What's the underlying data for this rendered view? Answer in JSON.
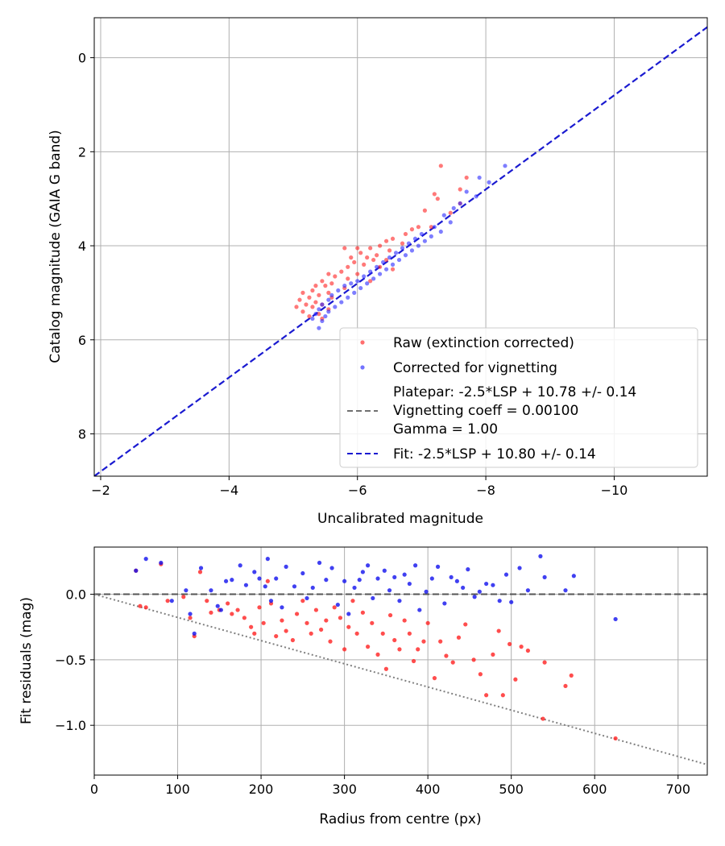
{
  "chart_data": [
    {
      "type": "scatter",
      "xlabel": "Uncalibrated magnitude",
      "ylabel": "Catalog magnitude (GAIA G band)",
      "xlim": [
        -1.9,
        -11.45
      ],
      "ylim": [
        8.9,
        -0.85
      ],
      "xticks": [
        -2,
        -4,
        -6,
        -8,
        -10
      ],
      "xtick_labels": [
        "−2",
        "−4",
        "−6",
        "−8",
        "−10"
      ],
      "yticks": [
        0,
        2,
        4,
        6,
        8
      ],
      "ytick_labels": [
        "0",
        "2",
        "4",
        "6",
        "8"
      ],
      "grid": true,
      "legend_position": "lower-right",
      "legend": {
        "raw": "Raw (extinction corrected)",
        "corrected": "Corrected for vignetting",
        "model_lines": [
          "Platepar: -2.5*LSP + 10.78 +/- 0.14",
          "Vignetting coeff = 0.00100",
          "Gamma = 1.00"
        ],
        "fit": "Fit: -2.5*LSP + 10.80 +/- 0.14"
      },
      "fit_line": {
        "slope": 1.0,
        "intercept": 10.8
      },
      "colors": {
        "raw": "#ff2020",
        "corrected": "#2828ff",
        "fit": "#1a1ad0",
        "model": "#707070",
        "grid": "#b0b0b0"
      },
      "series": [
        {
          "name": "Raw (extinction corrected)",
          "points": [
            [
              -7.3,
              2.3
            ],
            [
              -7.7,
              2.55
            ],
            [
              -7.6,
              2.8
            ],
            [
              -7.2,
              2.9
            ],
            [
              -7.25,
              3.0
            ],
            [
              -7.6,
              3.1
            ],
            [
              -7.05,
              3.25
            ],
            [
              -7.45,
              3.3
            ],
            [
              -6.95,
              3.6
            ],
            [
              -7.15,
              3.6
            ],
            [
              -6.85,
              3.65
            ],
            [
              -6.75,
              3.75
            ],
            [
              -6.55,
              3.85
            ],
            [
              -6.45,
              3.9
            ],
            [
              -6.7,
              3.95
            ],
            [
              -6.35,
              4.0
            ],
            [
              -6.2,
              4.05
            ],
            [
              -6.0,
              4.05
            ],
            [
              -5.8,
              4.05
            ],
            [
              -6.5,
              4.1
            ],
            [
              -6.05,
              4.15
            ],
            [
              -6.3,
              4.2
            ],
            [
              -5.9,
              4.25
            ],
            [
              -6.15,
              4.25
            ],
            [
              -6.45,
              4.3
            ],
            [
              -6.25,
              4.3
            ],
            [
              -5.95,
              4.35
            ],
            [
              -6.1,
              4.4
            ],
            [
              -5.85,
              4.45
            ],
            [
              -6.35,
              4.45
            ],
            [
              -6.55,
              4.5
            ],
            [
              -5.75,
              4.55
            ],
            [
              -5.55,
              4.6
            ],
            [
              -6.0,
              4.6
            ],
            [
              -5.65,
              4.65
            ],
            [
              -5.85,
              4.7
            ],
            [
              -5.45,
              4.75
            ],
            [
              -6.2,
              4.75
            ],
            [
              -5.6,
              4.8
            ],
            [
              -5.35,
              4.85
            ],
            [
              -5.5,
              4.85
            ],
            [
              -5.8,
              4.9
            ],
            [
              -5.3,
              4.95
            ],
            [
              -5.55,
              5.0
            ],
            [
              -5.15,
              5.0
            ],
            [
              -5.4,
              5.05
            ],
            [
              -5.25,
              5.1
            ],
            [
              -5.6,
              5.1
            ],
            [
              -5.1,
              5.15
            ],
            [
              -5.35,
              5.2
            ],
            [
              -5.45,
              5.25
            ],
            [
              -5.2,
              5.25
            ],
            [
              -5.05,
              5.3
            ],
            [
              -5.3,
              5.3
            ],
            [
              -5.55,
              5.35
            ],
            [
              -5.15,
              5.4
            ],
            [
              -5.4,
              5.45
            ],
            [
              -5.25,
              5.5
            ],
            [
              -5.45,
              5.55
            ]
          ]
        },
        {
          "name": "Corrected for vignetting",
          "points": [
            [
              -8.3,
              2.3
            ],
            [
              -7.9,
              2.55
            ],
            [
              -8.05,
              2.65
            ],
            [
              -7.7,
              2.85
            ],
            [
              -7.85,
              2.95
            ],
            [
              -7.6,
              3.1
            ],
            [
              -7.5,
              3.2
            ],
            [
              -7.35,
              3.35
            ],
            [
              -7.45,
              3.5
            ],
            [
              -7.2,
              3.6
            ],
            [
              -7.3,
              3.7
            ],
            [
              -7.0,
              3.75
            ],
            [
              -7.15,
              3.8
            ],
            [
              -6.9,
              3.85
            ],
            [
              -7.05,
              3.9
            ],
            [
              -6.8,
              3.95
            ],
            [
              -6.95,
              4.0
            ],
            [
              -6.7,
              4.05
            ],
            [
              -6.85,
              4.1
            ],
            [
              -6.6,
              4.15
            ],
            [
              -6.75,
              4.2
            ],
            [
              -6.5,
              4.25
            ],
            [
              -6.65,
              4.3
            ],
            [
              -6.4,
              4.35
            ],
            [
              -6.55,
              4.4
            ],
            [
              -6.3,
              4.45
            ],
            [
              -6.45,
              4.5
            ],
            [
              -6.2,
              4.55
            ],
            [
              -6.35,
              4.6
            ],
            [
              -6.1,
              4.65
            ],
            [
              -6.25,
              4.7
            ],
            [
              -6.0,
              4.75
            ],
            [
              -5.9,
              4.8
            ],
            [
              -6.15,
              4.8
            ],
            [
              -5.8,
              4.85
            ],
            [
              -6.05,
              4.9
            ],
            [
              -5.7,
              4.95
            ],
            [
              -5.95,
              5.0
            ],
            [
              -5.6,
              5.05
            ],
            [
              -5.85,
              5.1
            ],
            [
              -5.55,
              5.15
            ],
            [
              -5.75,
              5.2
            ],
            [
              -5.45,
              5.25
            ],
            [
              -5.65,
              5.3
            ],
            [
              -5.4,
              5.35
            ],
            [
              -5.55,
              5.4
            ],
            [
              -5.35,
              5.45
            ],
            [
              -5.5,
              5.5
            ],
            [
              -5.3,
              5.55
            ],
            [
              -5.45,
              5.6
            ],
            [
              -5.4,
              5.75
            ]
          ]
        }
      ]
    },
    {
      "type": "scatter",
      "xlabel": "Radius from centre (px)",
      "ylabel": "Fit residuals (mag)",
      "xlim": [
        0,
        735
      ],
      "ylim": [
        -1.38,
        0.36
      ],
      "xticks": [
        0,
        100,
        200,
        300,
        400,
        500,
        600,
        700
      ],
      "xtick_labels": [
        "0",
        "100",
        "200",
        "300",
        "400",
        "500",
        "600",
        "700"
      ],
      "yticks": [
        0.0,
        -0.5,
        -1.0
      ],
      "ytick_labels": [
        "0.0",
        "−0.5",
        "−1.0"
      ],
      "grid": true,
      "zero_line": 0.0,
      "trend_line": {
        "x": [
          0,
          735
        ],
        "y": [
          0.0,
          -1.3
        ]
      },
      "colors": {
        "raw": "#ff2020",
        "corrected": "#1010ee",
        "zero": "#555555",
        "trend": "#808080",
        "grid": "#b0b0b0"
      },
      "series": [
        {
          "name": "Raw",
          "points": [
            [
              50,
              0.18
            ],
            [
              55,
              -0.09
            ],
            [
              62,
              -0.1
            ],
            [
              80,
              0.23
            ],
            [
              88,
              -0.05
            ],
            [
              107,
              -0.02
            ],
            [
              115,
              -0.18
            ],
            [
              120,
              -0.32
            ],
            [
              127,
              0.17
            ],
            [
              135,
              -0.05
            ],
            [
              140,
              -0.14
            ],
            [
              150,
              -0.12
            ],
            [
              160,
              -0.07
            ],
            [
              165,
              -0.15
            ],
            [
              172,
              -0.12
            ],
            [
              180,
              -0.18
            ],
            [
              188,
              -0.25
            ],
            [
              192,
              -0.3
            ],
            [
              198,
              -0.1
            ],
            [
              203,
              -0.22
            ],
            [
              208,
              0.1
            ],
            [
              212,
              -0.07
            ],
            [
              218,
              -0.32
            ],
            [
              225,
              -0.2
            ],
            [
              230,
              -0.28
            ],
            [
              238,
              -0.35
            ],
            [
              243,
              -0.15
            ],
            [
              250,
              -0.05
            ],
            [
              255,
              -0.22
            ],
            [
              260,
              -0.3
            ],
            [
              266,
              -0.12
            ],
            [
              272,
              -0.27
            ],
            [
              278,
              -0.2
            ],
            [
              283,
              -0.36
            ],
            [
              288,
              -0.1
            ],
            [
              295,
              -0.18
            ],
            [
              300,
              -0.42
            ],
            [
              305,
              -0.25
            ],
            [
              310,
              -0.05
            ],
            [
              315,
              -0.3
            ],
            [
              322,
              -0.14
            ],
            [
              328,
              -0.4
            ],
            [
              333,
              -0.22
            ],
            [
              340,
              -0.46
            ],
            [
              346,
              -0.3
            ],
            [
              350,
              -0.57
            ],
            [
              355,
              -0.16
            ],
            [
              360,
              -0.35
            ],
            [
              366,
              -0.42
            ],
            [
              372,
              -0.2
            ],
            [
              378,
              -0.3
            ],
            [
              383,
              -0.51
            ],
            [
              388,
              -0.42
            ],
            [
              395,
              -0.36
            ],
            [
              400,
              -0.22
            ],
            [
              408,
              -0.64
            ],
            [
              415,
              -0.36
            ],
            [
              422,
              -0.47
            ],
            [
              430,
              -0.52
            ],
            [
              437,
              -0.33
            ],
            [
              445,
              -0.23
            ],
            [
              455,
              -0.5
            ],
            [
              463,
              -0.61
            ],
            [
              470,
              -0.77
            ],
            [
              478,
              -0.46
            ],
            [
              485,
              -0.28
            ],
            [
              490,
              -0.77
            ],
            [
              498,
              -0.38
            ],
            [
              505,
              -0.65
            ],
            [
              512,
              -0.4
            ],
            [
              520,
              -0.43
            ],
            [
              538,
              -0.95
            ],
            [
              540,
              -0.52
            ],
            [
              565,
              -0.7
            ],
            [
              572,
              -0.62
            ],
            [
              625,
              -1.1
            ]
          ]
        },
        {
          "name": "Corrected",
          "points": [
            [
              50,
              0.18
            ],
            [
              62,
              0.27
            ],
            [
              80,
              0.24
            ],
            [
              93,
              -0.05
            ],
            [
              110,
              0.03
            ],
            [
              115,
              -0.15
            ],
            [
              120,
              -0.3
            ],
            [
              128,
              0.2
            ],
            [
              140,
              0.03
            ],
            [
              148,
              -0.09
            ],
            [
              152,
              -0.12
            ],
            [
              158,
              0.1
            ],
            [
              165,
              0.11
            ],
            [
              175,
              0.22
            ],
            [
              182,
              0.07
            ],
            [
              192,
              0.17
            ],
            [
              198,
              0.12
            ],
            [
              205,
              0.06
            ],
            [
              208,
              0.27
            ],
            [
              212,
              -0.05
            ],
            [
              218,
              0.12
            ],
            [
              225,
              -0.1
            ],
            [
              230,
              0.21
            ],
            [
              240,
              0.06
            ],
            [
              250,
              0.16
            ],
            [
              255,
              -0.03
            ],
            [
              262,
              0.05
            ],
            [
              270,
              0.24
            ],
            [
              278,
              0.11
            ],
            [
              285,
              0.2
            ],
            [
              292,
              -0.08
            ],
            [
              300,
              0.1
            ],
            [
              305,
              -0.15
            ],
            [
              312,
              0.05
            ],
            [
              318,
              0.11
            ],
            [
              322,
              0.17
            ],
            [
              328,
              0.22
            ],
            [
              334,
              -0.03
            ],
            [
              340,
              0.12
            ],
            [
              348,
              0.18
            ],
            [
              354,
              0.03
            ],
            [
              360,
              0.13
            ],
            [
              366,
              -0.05
            ],
            [
              372,
              0.15
            ],
            [
              378,
              0.08
            ],
            [
              385,
              0.22
            ],
            [
              390,
              -0.12
            ],
            [
              398,
              0.02
            ],
            [
              405,
              0.12
            ],
            [
              412,
              0.21
            ],
            [
              420,
              -0.07
            ],
            [
              428,
              0.13
            ],
            [
              435,
              0.1
            ],
            [
              442,
              0.05
            ],
            [
              448,
              0.19
            ],
            [
              456,
              -0.02
            ],
            [
              462,
              0.02
            ],
            [
              470,
              0.08
            ],
            [
              478,
              0.07
            ],
            [
              486,
              -0.05
            ],
            [
              494,
              0.15
            ],
            [
              500,
              -0.06
            ],
            [
              510,
              0.2
            ],
            [
              520,
              0.03
            ],
            [
              535,
              0.29
            ],
            [
              540,
              0.13
            ],
            [
              565,
              0.03
            ],
            [
              575,
              0.14
            ],
            [
              625,
              -0.19
            ]
          ]
        }
      ]
    }
  ]
}
